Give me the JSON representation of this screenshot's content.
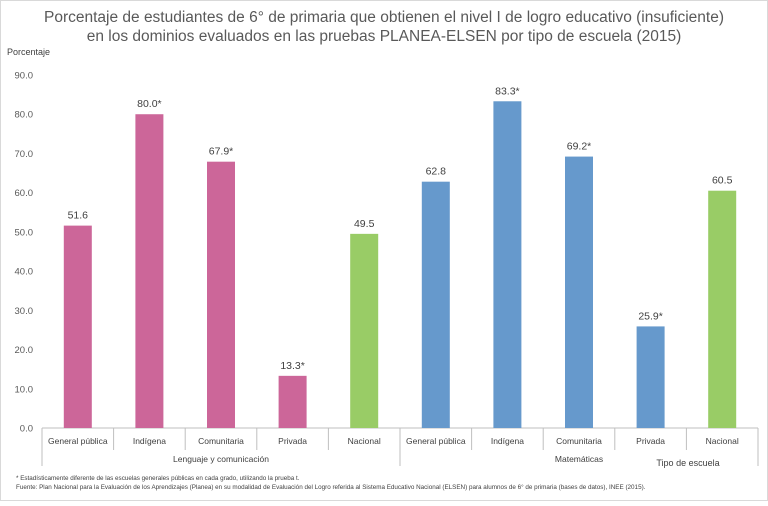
{
  "chart_data": {
    "type": "bar",
    "title_line1": "Porcentaje de estudiantes de 6° de primaria que obtienen el nivel I de logro educativo (insuficiente)",
    "title_line2": "en los dominios evaluados en las pruebas PLANEA-ELSEN por tipo de escuela (2015)",
    "ylabel": "Porcentaje",
    "xlabel": "Tipo de escuela",
    "ylim": [
      0,
      90
    ],
    "yticks": [
      "0.0",
      "10.0",
      "20.0",
      "30.0",
      "40.0",
      "50.0",
      "60.0",
      "70.0",
      "80.0",
      "90.0"
    ],
    "grid": false,
    "groups": [
      {
        "name": "Lenguaje y comunicación",
        "categories": [
          "General pública",
          "Indígena",
          "Comunitaria",
          "Privada",
          "Nacional"
        ],
        "values": [
          51.6,
          80.0,
          67.9,
          13.3,
          49.5
        ],
        "labels": [
          "51.6",
          "80.0*",
          "67.9*",
          "13.3*",
          "49.5"
        ]
      },
      {
        "name": "Matemáticas",
        "categories": [
          "General pública",
          "Indígena",
          "Comunitaria",
          "Privada",
          "Nacional"
        ],
        "values": [
          62.8,
          83.3,
          69.2,
          25.9,
          60.5
        ],
        "labels": [
          "62.8",
          "83.3*",
          "69.2*",
          "25.9*",
          "60.5"
        ]
      }
    ],
    "colors": {
      "lenguaje": "#cc6699",
      "matematicas": "#6699cc",
      "nacional": "#99cc66"
    }
  },
  "footnotes": {
    "note1": "* Estadísticamente diferente de las escuelas generales públicas en cada grado, utilizando la prueba t.",
    "note2": "Fuente: Plan Nacional para la Evaluación de los Aprendizajes (Planea) en su modalidad de Evaluación del Logro referida al Sistema Educativo Nacional (ELSEN) para alumnos de 6° de primaria  (bases de datos), INEE (2015)."
  }
}
